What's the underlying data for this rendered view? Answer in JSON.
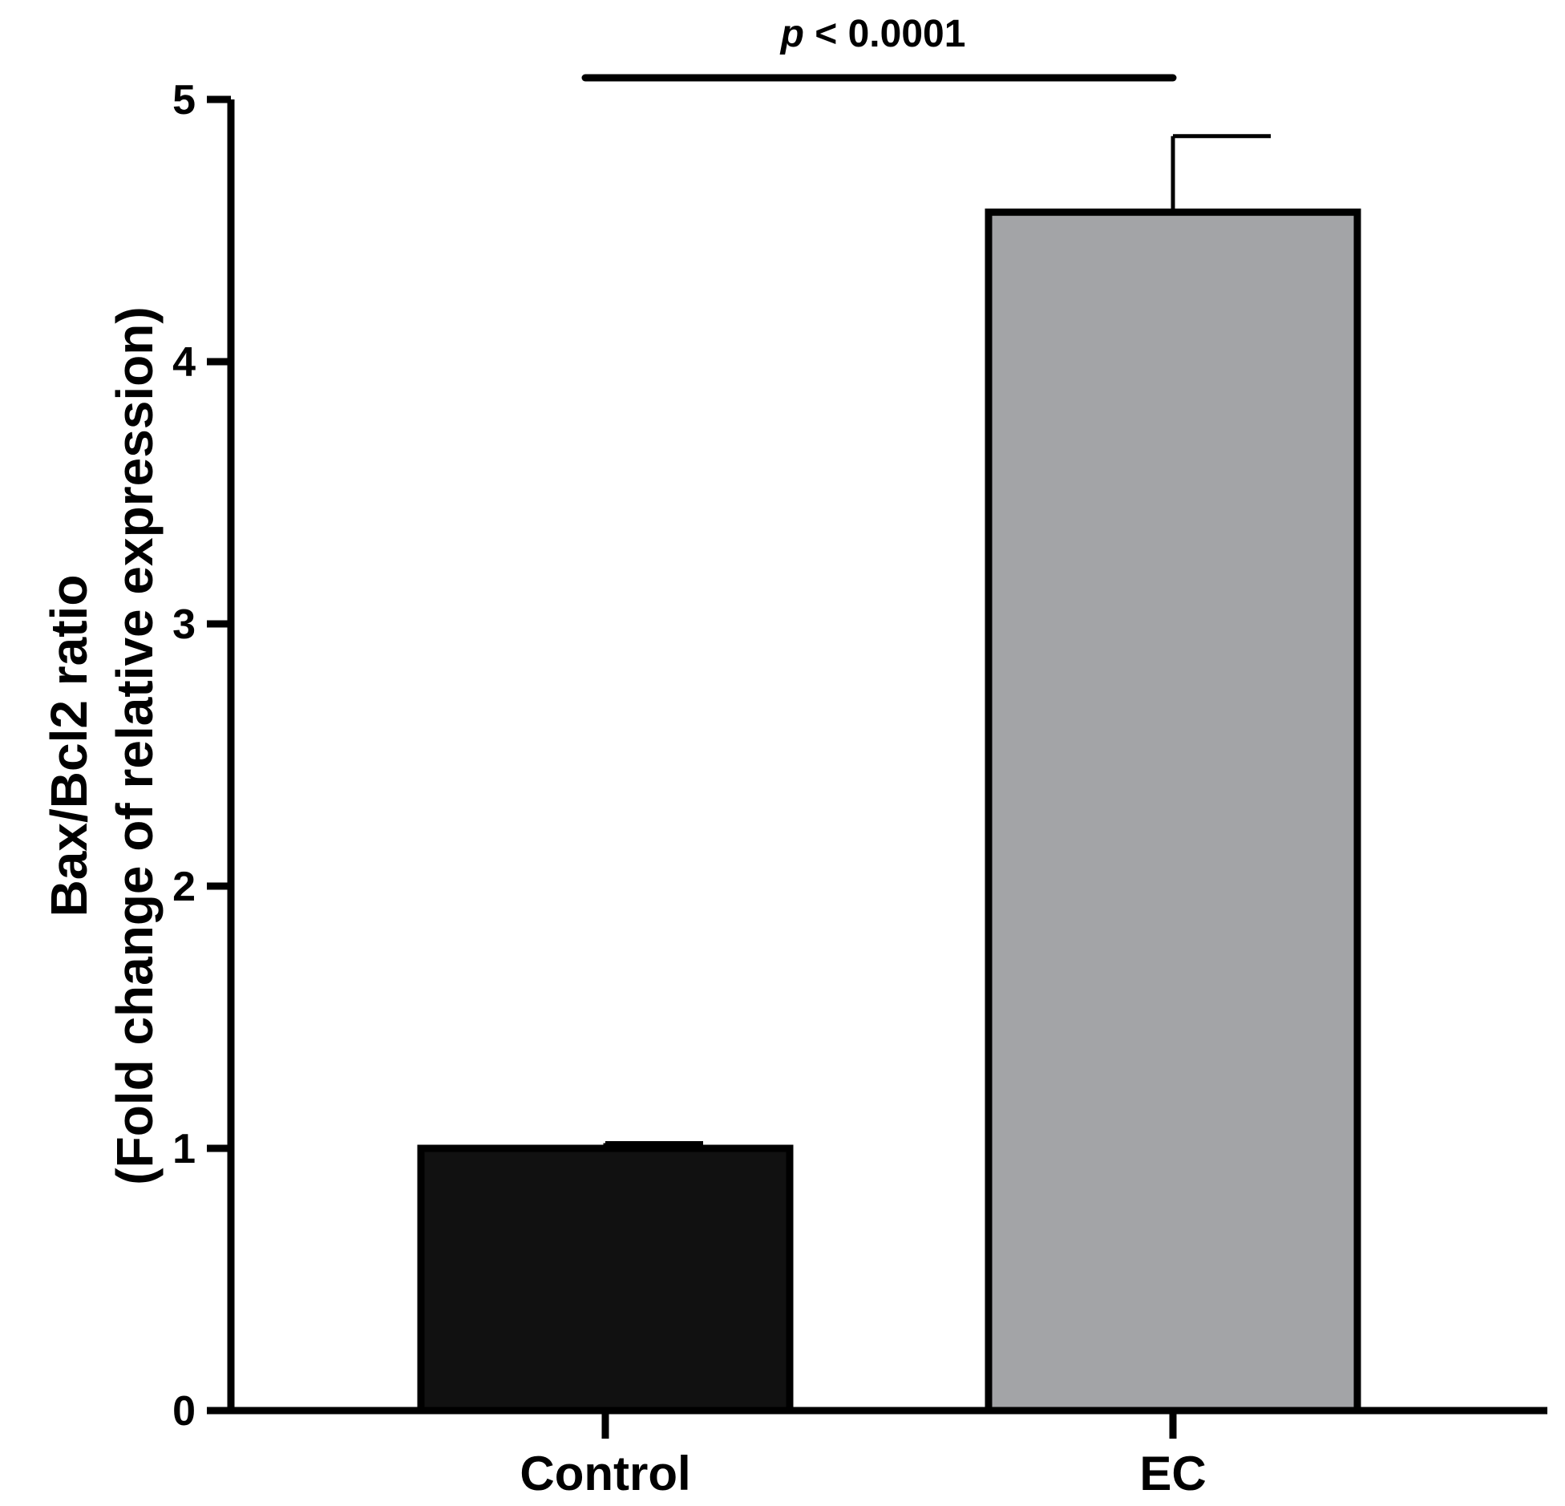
{
  "chart_data": {
    "type": "bar",
    "categories": [
      "Control",
      "EC"
    ],
    "values": [
      1.0,
      4.57
    ],
    "error_upper": [
      1.02,
      4.86
    ],
    "colors": [
      "#111111",
      "#a3a4a7"
    ],
    "ylabel": "Bax/Bcl2 ratio",
    "ylabel_sub": "(Fold change of relative expression)",
    "ylim": [
      0,
      5
    ],
    "yticks": [
      "0",
      "1",
      "2",
      "3",
      "4",
      "5"
    ],
    "grid": false,
    "significance": {
      "from": "Control",
      "to": "EC",
      "p_symbol": "p",
      "p_text": " < 0.0001"
    }
  }
}
